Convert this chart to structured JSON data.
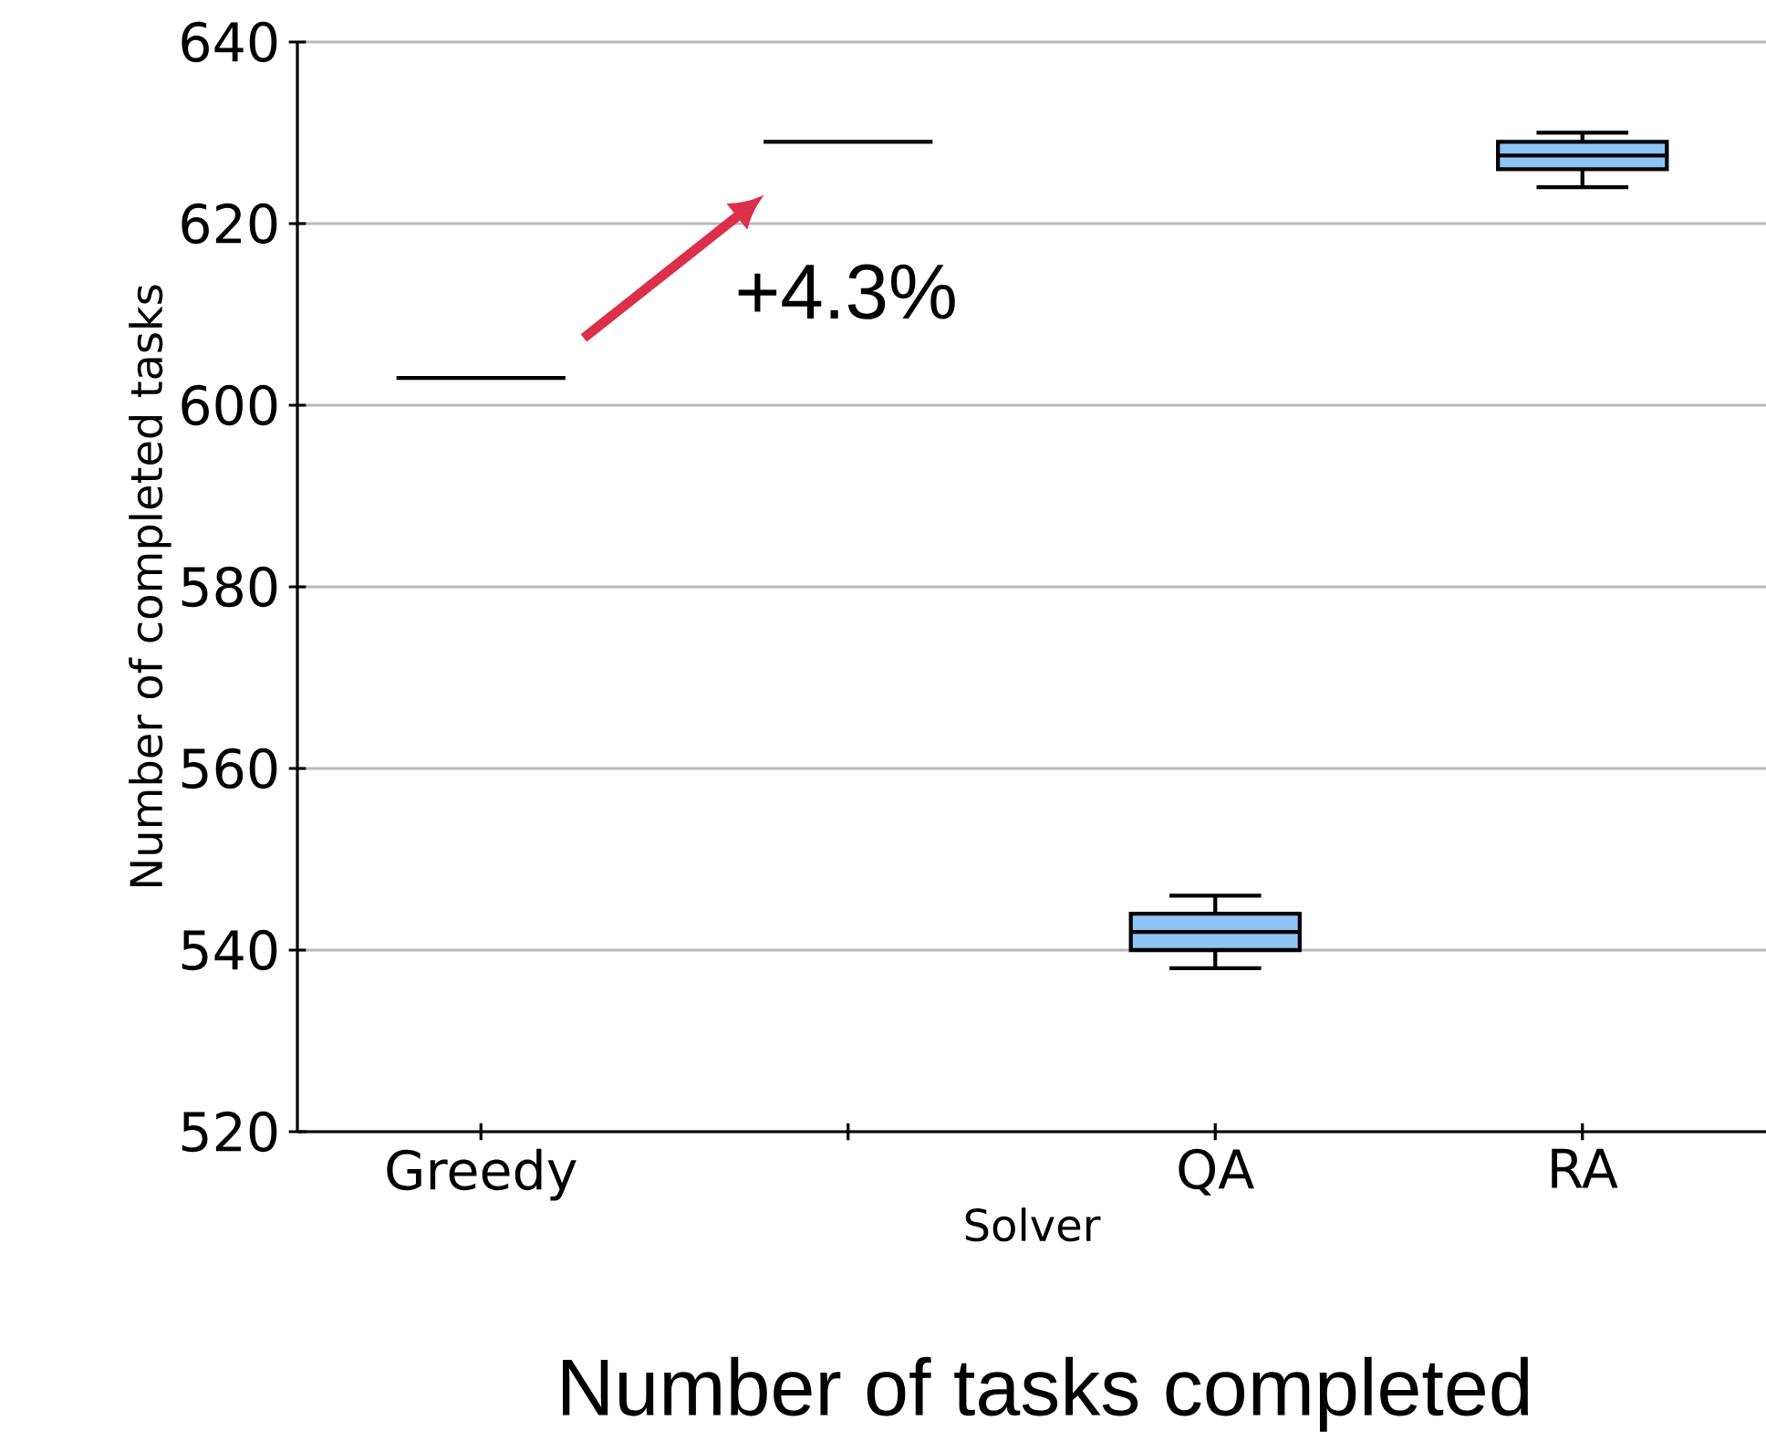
{
  "chart_data": {
    "type": "box",
    "title": "Number of tasks completed",
    "xlabel": "Solver",
    "ylabel": "Number of completed tasks",
    "categories": [
      "Greedy",
      null,
      "QA",
      "RA"
    ],
    "boxes": [
      {
        "low": 603,
        "q1": 603,
        "median": 603,
        "q3": 603,
        "high": 603
      },
      {
        "low": 629,
        "q1": 629,
        "median": 629,
        "q3": 629,
        "high": 629
      },
      {
        "low": 538,
        "q1": 540,
        "median": 542,
        "q3": 544,
        "high": 546
      },
      {
        "low": 624,
        "q1": 626,
        "median": 627.5,
        "q3": 629,
        "high": 630
      }
    ],
    "colors": [
      "#000000",
      "#000000",
      "#8ec5f5",
      "#8ec5f5"
    ],
    "ylim": [
      520,
      640
    ],
    "yticks": [
      520,
      540,
      560,
      580,
      600,
      620,
      640
    ],
    "grid": "y",
    "annotations": [
      "+4.3%"
    ]
  }
}
